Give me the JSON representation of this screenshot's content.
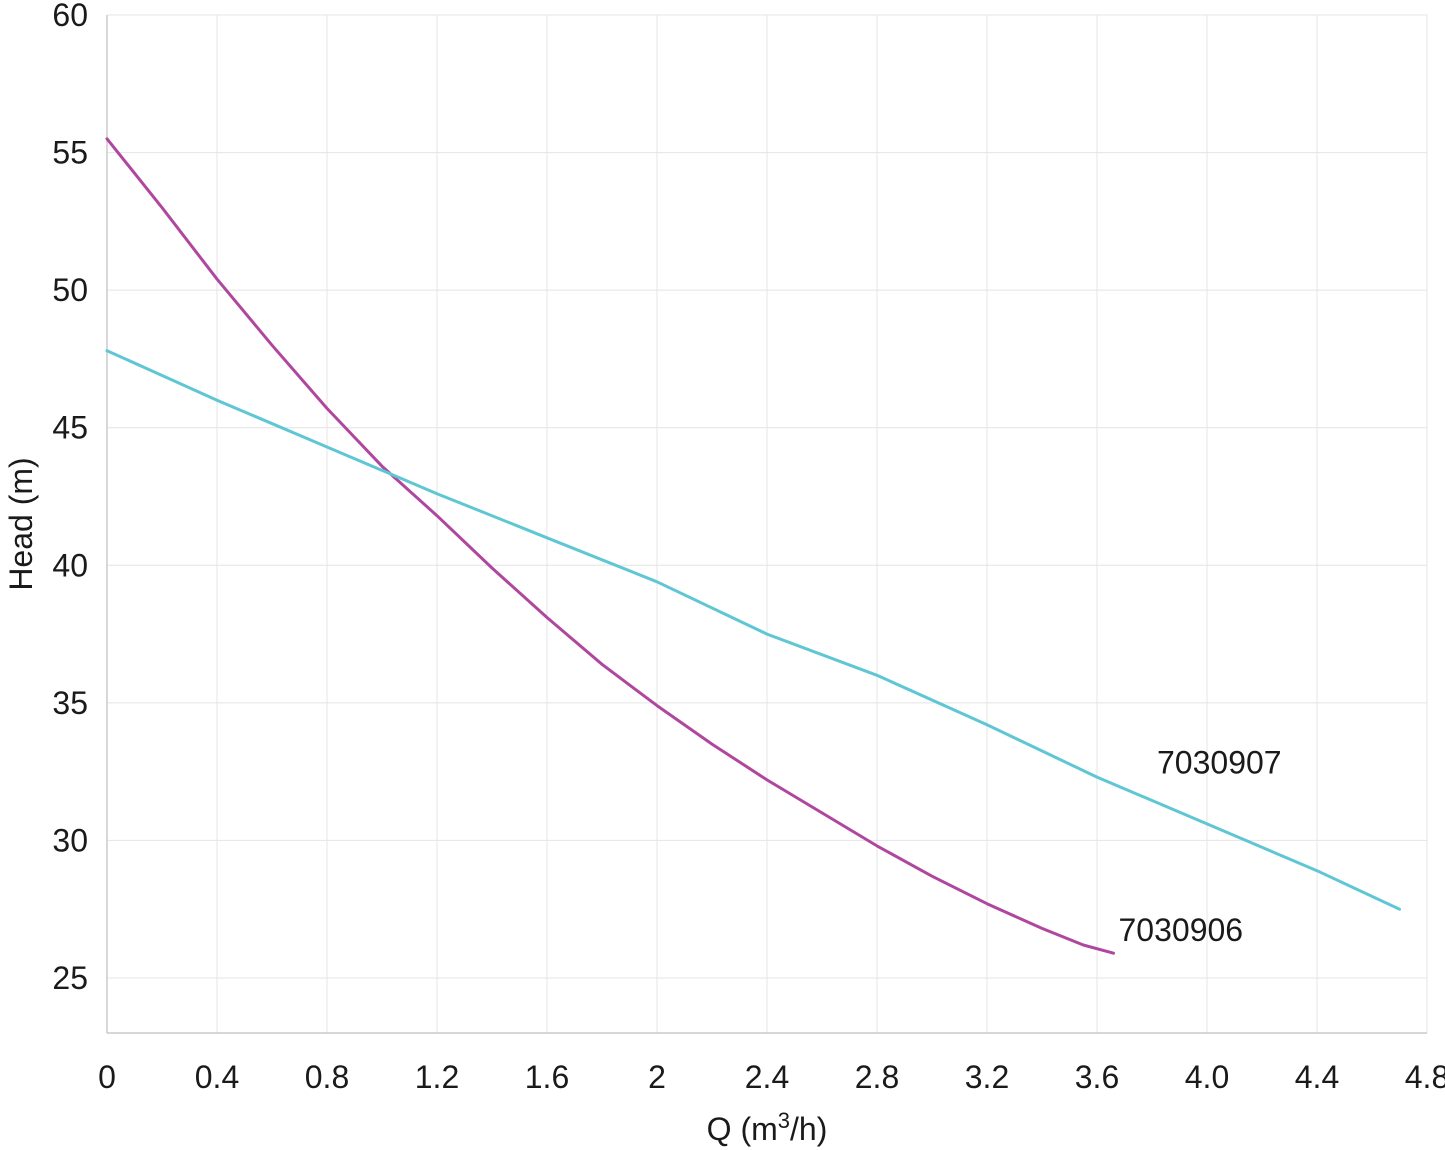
{
  "chart_data": {
    "type": "line",
    "xlabel": "Q (m",
    "xlabel_sup": "3",
    "xlabel_suffix": "/h)",
    "ylabel": "Head (m)",
    "xlim": [
      0,
      4.8
    ],
    "ylim": [
      23,
      60
    ],
    "grid": true,
    "x_ticks": [
      {
        "value": 0,
        "label": "0"
      },
      {
        "value": 0.4,
        "label": "0.4"
      },
      {
        "value": 0.8,
        "label": "0.8"
      },
      {
        "value": 1.2,
        "label": "1.2"
      },
      {
        "value": 1.6,
        "label": "1.6"
      },
      {
        "value": 2.0,
        "label": "2"
      },
      {
        "value": 2.4,
        "label": "2.4"
      },
      {
        "value": 2.8,
        "label": "2.8"
      },
      {
        "value": 3.2,
        "label": "3.2"
      },
      {
        "value": 3.6,
        "label": "3.6"
      },
      {
        "value": 4.0,
        "label": "4.0"
      },
      {
        "value": 4.4,
        "label": "4.4"
      },
      {
        "value": 4.8,
        "label": "4.8"
      }
    ],
    "y_ticks": [
      {
        "value": 25,
        "label": "25"
      },
      {
        "value": 30,
        "label": "30"
      },
      {
        "value": 35,
        "label": "35"
      },
      {
        "value": 40,
        "label": "40"
      },
      {
        "value": 45,
        "label": "45"
      },
      {
        "value": 50,
        "label": "50"
      },
      {
        "value": 55,
        "label": "55"
      },
      {
        "value": 60,
        "label": "60"
      }
    ],
    "series": [
      {
        "name": "7030906",
        "color": "#b0479f",
        "label_anchor": {
          "x": 3.66,
          "y": 25.9
        },
        "points": [
          {
            "x": 0.0,
            "y": 55.5
          },
          {
            "x": 0.2,
            "y": 53.0
          },
          {
            "x": 0.4,
            "y": 50.4
          },
          {
            "x": 0.6,
            "y": 48.0
          },
          {
            "x": 0.8,
            "y": 45.7
          },
          {
            "x": 1.0,
            "y": 43.6
          },
          {
            "x": 1.2,
            "y": 41.8
          },
          {
            "x": 1.4,
            "y": 39.9
          },
          {
            "x": 1.6,
            "y": 38.1
          },
          {
            "x": 1.8,
            "y": 36.4
          },
          {
            "x": 2.0,
            "y": 34.9
          },
          {
            "x": 2.2,
            "y": 33.5
          },
          {
            "x": 2.4,
            "y": 32.2
          },
          {
            "x": 2.6,
            "y": 31.0
          },
          {
            "x": 2.8,
            "y": 29.8
          },
          {
            "x": 3.0,
            "y": 28.7
          },
          {
            "x": 3.2,
            "y": 27.7
          },
          {
            "x": 3.4,
            "y": 26.8
          },
          {
            "x": 3.55,
            "y": 26.2
          },
          {
            "x": 3.66,
            "y": 25.9
          }
        ]
      },
      {
        "name": "7030907",
        "color": "#5fc6d4",
        "label_anchor": {
          "x": 3.8,
          "y": 32.0
        },
        "points": [
          {
            "x": 0.0,
            "y": 47.8
          },
          {
            "x": 0.4,
            "y": 46.0
          },
          {
            "x": 0.8,
            "y": 44.3
          },
          {
            "x": 1.2,
            "y": 42.6
          },
          {
            "x": 1.6,
            "y": 41.0
          },
          {
            "x": 2.0,
            "y": 39.4
          },
          {
            "x": 2.4,
            "y": 37.5
          },
          {
            "x": 2.8,
            "y": 36.0
          },
          {
            "x": 3.2,
            "y": 34.2
          },
          {
            "x": 3.6,
            "y": 32.3
          },
          {
            "x": 4.0,
            "y": 30.6
          },
          {
            "x": 4.4,
            "y": 28.9
          },
          {
            "x": 4.7,
            "y": 27.5
          }
        ]
      }
    ]
  }
}
